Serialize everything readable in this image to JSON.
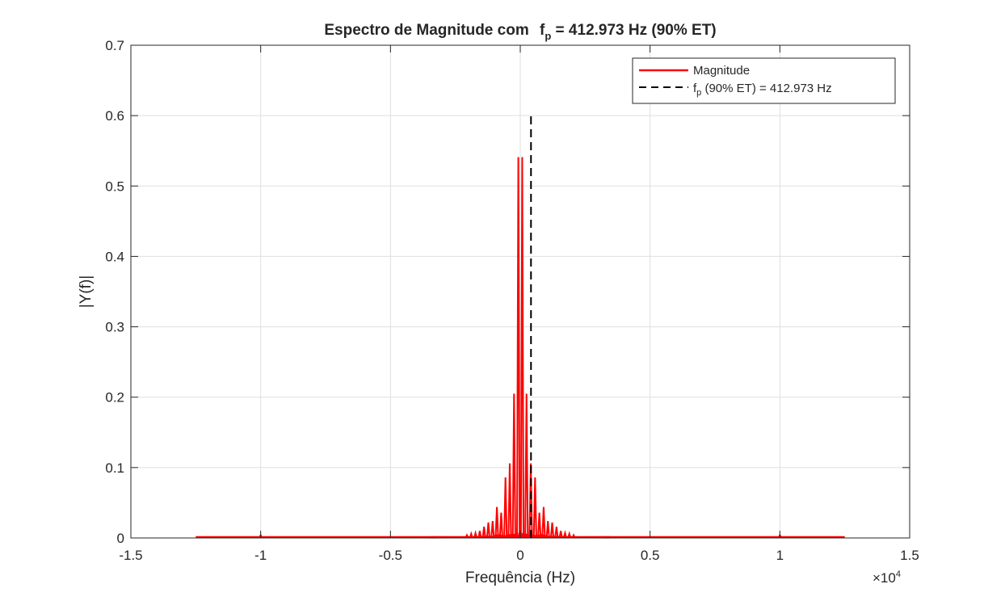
{
  "chart_data": {
    "type": "line",
    "title": "Espectro de Magnitude com",
    "title_symbol": "f",
    "title_subscript": "p",
    "title_suffix": " = 412.973 Hz (90% ET)",
    "xlabel": "Frequência (Hz)",
    "ylabel": "|Y(f)|",
    "x_exponent_base": "×10",
    "x_exponent_power": "4",
    "xlim": [
      -1.5,
      1.5
    ],
    "ylim": [
      0,
      0.7
    ],
    "xticks": [
      -1.5,
      -1,
      -0.5,
      0,
      0.5,
      1,
      1.5
    ],
    "xtick_labels": [
      "-1.5",
      "-1",
      "-0.5",
      "0",
      "0.5",
      "1",
      "1.5"
    ],
    "yticks": [
      0,
      0.1,
      0.2,
      0.3,
      0.4,
      0.5,
      0.6,
      0.7
    ],
    "ytick_labels": [
      "0",
      "0.1",
      "0.2",
      "0.3",
      "0.4",
      "0.5",
      "0.6",
      "0.7"
    ],
    "grid": true,
    "legend_position": "top-right",
    "series": [
      {
        "name": "Magnitude",
        "color": "#ff0000",
        "style": "solid",
        "x_range": [
          -1.25,
          1.25
        ],
        "peaks": [
          {
            "x": -0.0075,
            "y": 0.541
          },
          {
            "x": 0.0075,
            "y": 0.541
          },
          {
            "x": -0.024,
            "y": 0.205
          },
          {
            "x": 0.024,
            "y": 0.205
          },
          {
            "x": -0.0405,
            "y": 0.106
          },
          {
            "x": 0.0405,
            "y": 0.106
          },
          {
            "x": -0.057,
            "y": 0.086
          },
          {
            "x": 0.057,
            "y": 0.086
          },
          {
            "x": -0.0735,
            "y": 0.036
          },
          {
            "x": 0.0735,
            "y": 0.036
          },
          {
            "x": -0.09,
            "y": 0.044
          },
          {
            "x": 0.09,
            "y": 0.044
          },
          {
            "x": -0.1065,
            "y": 0.024
          },
          {
            "x": 0.1065,
            "y": 0.024
          },
          {
            "x": -0.123,
            "y": 0.022
          },
          {
            "x": 0.123,
            "y": 0.022
          },
          {
            "x": -0.1395,
            "y": 0.016
          },
          {
            "x": 0.1395,
            "y": 0.016
          },
          {
            "x": -0.156,
            "y": 0.01
          },
          {
            "x": 0.156,
            "y": 0.01
          },
          {
            "x": -0.1725,
            "y": 0.007
          },
          {
            "x": 0.1725,
            "y": 0.007
          },
          {
            "x": -0.189,
            "y": 0.006
          },
          {
            "x": 0.189,
            "y": 0.006
          },
          {
            "x": -0.2055,
            "y": 0.004
          },
          {
            "x": 0.2055,
            "y": 0.004
          },
          {
            "x": -1.0,
            "y": 0.004
          },
          {
            "x": 1.0,
            "y": 0.004
          }
        ]
      },
      {
        "name": "f",
        "name_subscript": "p",
        "name_suffix": " (90% ET) = 412.973 Hz",
        "color": "#000000",
        "style": "dashed",
        "x": 0.0412973,
        "y_range": [
          0,
          0.6
        ]
      }
    ]
  }
}
